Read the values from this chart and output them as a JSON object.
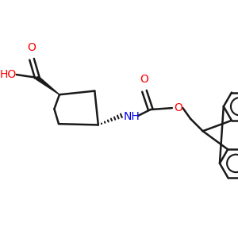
{
  "bg_color": "#ffffff",
  "bond_color": "#1a1a1a",
  "bond_width": 1.8,
  "O_color": "#ff0000",
  "N_color": "#0000ee",
  "figsize": [
    3.0,
    3.0
  ],
  "dpi": 100,
  "xlim": [
    0,
    300
  ],
  "ylim": [
    0,
    300
  ]
}
